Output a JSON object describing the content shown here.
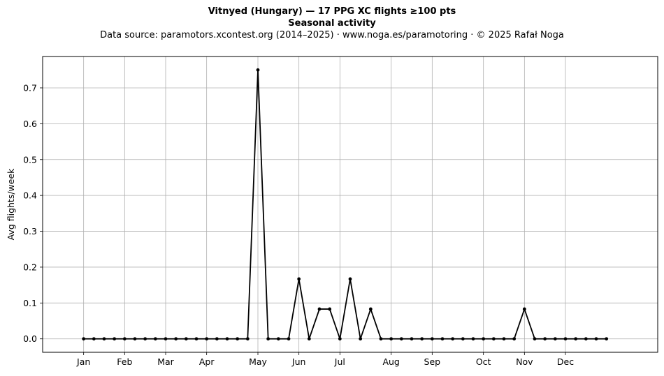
{
  "chart_data": {
    "type": "line",
    "title": "Vitnyed (Hungary)  —  17 PPG XC flights ≥100 pts",
    "subtitle": "Seasonal activity",
    "source_note": "Data source: paramotors.xcontest.org (2014–2025)  ·  www.noga.es/paramotoring  ·  © 2025 Rafał Noga",
    "xlabel": "",
    "ylabel": "Avg flights/week",
    "xlim": [
      -4,
      56
    ],
    "ylim": [
      -0.0375,
      0.7875
    ],
    "grid": true,
    "x_ticks": [
      {
        "x": 0,
        "label": "Jan"
      },
      {
        "x": 4,
        "label": "Feb"
      },
      {
        "x": 8,
        "label": "Mar"
      },
      {
        "x": 12,
        "label": "Apr"
      },
      {
        "x": 17,
        "label": "May"
      },
      {
        "x": 21,
        "label": "Jun"
      },
      {
        "x": 25,
        "label": "Jul"
      },
      {
        "x": 30,
        "label": "Aug"
      },
      {
        "x": 34,
        "label": "Sep"
      },
      {
        "x": 39,
        "label": "Oct"
      },
      {
        "x": 43,
        "label": "Nov"
      },
      {
        "x": 47,
        "label": "Dec"
      }
    ],
    "y_ticks": [
      0.0,
      0.1,
      0.2,
      0.3,
      0.4,
      0.5,
      0.6,
      0.7
    ],
    "y_tick_labels": [
      "0.0",
      "0.1",
      "0.2",
      "0.3",
      "0.4",
      "0.5",
      "0.6",
      "0.7"
    ],
    "series": [
      {
        "color": "#000000",
        "x": [
          0,
          1,
          2,
          3,
          4,
          5,
          6,
          7,
          8,
          9,
          10,
          11,
          12,
          13,
          14,
          15,
          16,
          17,
          18,
          19,
          20,
          21,
          22,
          23,
          24,
          25,
          26,
          27,
          28,
          29,
          30,
          31,
          32,
          33,
          34,
          35,
          36,
          37,
          38,
          39,
          40,
          41,
          42,
          43,
          44,
          45,
          46,
          47,
          48,
          49,
          50,
          51
        ],
        "values": [
          0,
          0,
          0,
          0,
          0,
          0,
          0,
          0,
          0,
          0,
          0,
          0,
          0,
          0,
          0,
          0,
          0,
          0.75,
          0,
          0,
          0,
          0.167,
          0,
          0.083,
          0.083,
          0,
          0.167,
          0,
          0.083,
          0,
          0,
          0,
          0,
          0,
          0,
          0,
          0,
          0,
          0,
          0,
          0,
          0,
          0,
          0.083,
          0,
          0,
          0,
          0,
          0,
          0,
          0,
          0
        ]
      }
    ]
  }
}
